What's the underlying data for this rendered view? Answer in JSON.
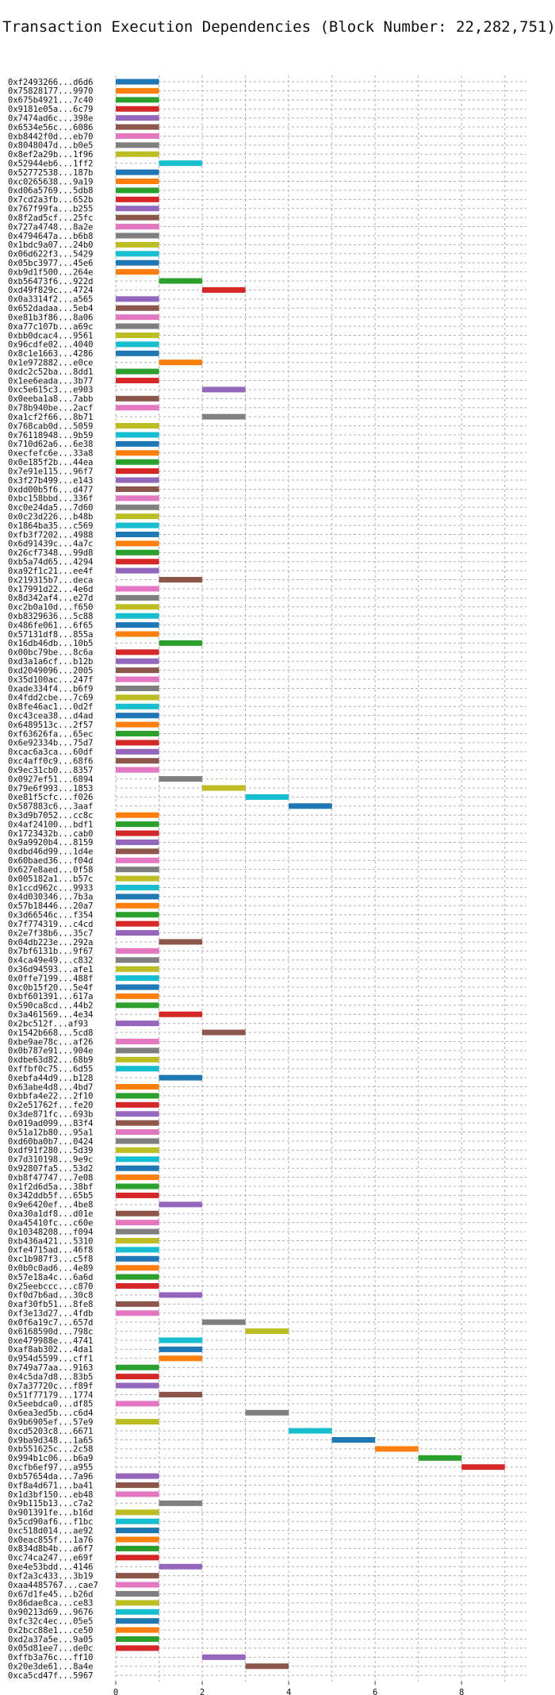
{
  "chart_data": {
    "type": "bar",
    "orientation": "horizontal-gantt",
    "title": "Transaction Execution Dependencies (Block Number: 22,282,751)",
    "xlabel": "",
    "ylabel": "",
    "xlim": [
      0,
      9.5
    ],
    "xticks": [
      0,
      2,
      4,
      6,
      8
    ],
    "grid": true,
    "palette": [
      "#1f77b4",
      "#ff7f0e",
      "#2ca02c",
      "#d62728",
      "#9467bd",
      "#8c564b",
      "#e377c2",
      "#7f7f7f",
      "#bcbd22",
      "#17becf"
    ],
    "categories": [
      "0xf2493266...d6d6",
      "0x75828177...9970",
      "0x675b4921...7c40",
      "0x9181e05a...6c79",
      "0x7474ad6c...398e",
      "0x6534e56c...6086",
      "0xb8442f0d...eb70",
      "0x8048047d...b0e5",
      "0x8ef2a29b...1f96",
      "0x52944eb6...1ff2",
      "0x52772538...187b",
      "0xc0265638...9a19",
      "0xd06a5769...5db8",
      "0x7cd2a3fb...652b",
      "0x767f99fa...b255",
      "0x8f2ad5cf...25fc",
      "0x727a4748...8a2e",
      "0x4794647a...b6b8",
      "0x1bdc9a07...24b0",
      "0x06d622f3...5429",
      "0x05bc3977...45e6",
      "0xb9d1f500...264e",
      "0xb56473f6...922d",
      "0xd49f829c...4724",
      "0x0a3314f2...a565",
      "0x652dadaa...5eb4",
      "0xe81b3f86...8a06",
      "0xa77c107b...a69c",
      "0xbb0dcac4...9561",
      "0x96cdfe02...4040",
      "0x8c1e1663...4286",
      "0x1e972882...e0ce",
      "0xdc2c52ba...8dd1",
      "0x1ee6eada...3b77",
      "0xc5e615c3...e903",
      "0x0eeba1a8...7abb",
      "0x78b940be...2acf",
      "0xa1cf2f66...8b71",
      "0x768cab0d...5059",
      "0x76118948...9b59",
      "0x710d62a6...6e38",
      "0xecfefc6e...33a8",
      "0x0e185f2b...44ea",
      "0x7e91e115...96f7",
      "0x3f27b499...e143",
      "0xdd00b5f6...d477",
      "0xbc158bbd...336f",
      "0xc0e24da5...7d60",
      "0x0c23d226...b48b",
      "0x1864ba35...c569",
      "0xfb3f7202...4988",
      "0x6d91439c...4a7c",
      "0x26cf7348...99d8",
      "0xb5a74d65...4294",
      "0xa92f1c21...ee4f",
      "0x219315b7...deca",
      "0x17991d22...4e6d",
      "0x8d342af4...e27d",
      "0xc2b0a10d...f650",
      "0xb8329636...5c88",
      "0x486fe061...6f65",
      "0x57131df8...855a",
      "0x16db46db...10b5",
      "0x00bc79be...8c6a",
      "0xd3a1a6cf...b12b",
      "0xd2049096...2005",
      "0x35d100ac...247f",
      "0xade334f4...b6f9",
      "0x4fdd2cbe...7c69",
      "0x8fe46ac1...0d2f",
      "0xc43cea38...d4ad",
      "0x6489513c...2f57",
      "0xf63626fa...65ec",
      "0x6e92334b...75d7",
      "0xcac6a3ca...60df",
      "0xc4aff0c9...68f6",
      "0x9ec31cb0...8357",
      "0x0927ef51...6894",
      "0x79e6f993...1853",
      "0xe81f5cfc...f026",
      "0x587883c6...3aaf",
      "0x3d9b7052...cc8c",
      "0x4af24100...bdf1",
      "0x1723432b...cab0",
      "0x9a9920b4...8159",
      "0xdbd46d99...1d4e",
      "0x60baed36...f04d",
      "0x627e8aed...0f58",
      "0x005182a1...b57c",
      "0x1ccd962c...9933",
      "0x4d030346...7b3a",
      "0x57b18446...20a7",
      "0x3d66546c...f354",
      "0x7f774319...c4cd",
      "0x2e7f38b6...35c7",
      "0x04db223e...292a",
      "0x7bf6131b...9f67",
      "0x4ca49e49...c832",
      "0x36d94593...afe1",
      "0x0ffe7199...488f",
      "0xc0b15f20...5e4f",
      "0xbf601391...617a",
      "0x590ca8cd...44b2",
      "0x3a461569...4e34",
      "0x2bc512f...af93",
      "0x1542b668...5cd8",
      "0xbe9ae78c...af26",
      "0x0b787e91...904e",
      "0xdbe63d82...68b9",
      "0xffbf0c75...6d55",
      "0xebfa44d9...b128",
      "0x63abe4d8...4bd7",
      "0xbbfa4e22...2f10",
      "0x2e51762f...fe20",
      "0x3de871fc...693b",
      "0x019ad099...83f4",
      "0x51a12b80...95a1",
      "0xd60ba0b7...0424",
      "0xdf91f280...5d39",
      "0x7d310198...9e9c",
      "0x92807fa5...53d2",
      "0xb8f47747...7e08",
      "0x1f2d6d5a...38bf",
      "0x342ddb5f...65b5",
      "0x9e6420ef...4be8",
      "0xa30a1df8...d01e",
      "0xa45410fc...c60e",
      "0x10348208...f094",
      "0xb436a421...5310",
      "0xfe4715ad...46f8",
      "0xc1b987f3...c5f8",
      "0x0b0c0ad6...4e89",
      "0x57e18a4c...6a6d",
      "0x25eebccc...c870",
      "0xf0d7b6ad...30c8",
      "0xaf30fb51...8fe8",
      "0xf3e13d27...4fdb",
      "0x0f6a19c7...657d",
      "0x6168590d...798c",
      "0xe479988e...4741",
      "0xaf8ab302...4da1",
      "0x954d5599...cff1",
      "0x749a77aa...9163",
      "0x4c5da7d8...83b5",
      "0x7a37720c...f89f",
      "0x51f77179...1774",
      "0x5eebdca0...df85",
      "0x6ea3ed5b...c6d4",
      "0x9b6905ef...57e9",
      "0xcd5203c8...6671",
      "0x9ba9d348...1a65",
      "0xb551625c...2c58",
      "0x994b1c06...b6a9",
      "0xcfb6ef97...a955",
      "0xb57654da...7a96",
      "0xf8a4d671...ba41",
      "0x1d3bf150...eb48",
      "0x9b115b13...c7a2",
      "0x901391fe...b16d",
      "0x5cd90af6...f1bc",
      "0xc518d014...ae92",
      "0x0eac855f...1a76",
      "0x834d8b4b...a6f7",
      "0xc74ca247...e69f",
      "0xe4e53bdd...4146",
      "0xf2a3c433...3b19",
      "0xaa4485767...cae7",
      "0x67d1fe45...b26d",
      "0x86dae8ca...ce83",
      "0x90213d69...9676",
      "0xfc32c4ec...05e5",
      "0x2bcc88e1...ce50",
      "0xd2a37a5e...9a05",
      "0x05d81ee7...de0c",
      "0xffb3a76c...ff10",
      "0x20e3de61...8a4e",
      "0xca5cd47f...5967"
    ],
    "start": [
      0,
      0,
      0,
      0,
      0,
      0,
      0,
      0,
      0,
      1,
      0,
      0,
      0,
      0,
      0,
      0,
      0,
      0,
      0,
      0,
      0,
      0,
      1,
      2,
      0,
      0,
      0,
      0,
      0,
      0,
      0,
      1,
      0,
      0,
      2,
      0,
      0,
      2,
      0,
      0,
      0,
      0,
      0,
      0,
      0,
      0,
      0,
      0,
      0,
      0,
      0,
      0,
      0,
      0,
      0,
      1,
      0,
      0,
      0,
      0,
      0,
      0,
      1,
      0,
      0,
      0,
      0,
      0,
      0,
      0,
      0,
      0,
      0,
      0,
      0,
      0,
      0,
      1,
      2,
      3,
      4,
      0,
      0,
      0,
      0,
      0,
      0,
      0,
      0,
      0,
      0,
      0,
      0,
      0,
      0,
      1,
      0,
      0,
      0,
      0,
      0,
      0,
      0,
      1,
      0,
      2,
      0,
      0,
      0,
      0,
      1,
      0,
      0,
      0,
      0,
      0,
      0,
      0,
      0,
      0,
      0,
      0,
      0,
      0,
      1,
      0,
      0,
      0,
      0,
      0,
      0,
      0,
      0,
      0,
      1,
      0,
      0,
      2,
      3,
      1,
      1,
      1,
      0,
      0,
      0,
      1,
      0,
      3,
      0,
      4,
      5,
      6,
      7,
      8,
      0,
      0,
      0,
      1,
      0,
      0,
      0,
      0,
      0,
      0,
      1,
      0,
      0,
      0,
      0,
      0,
      0,
      0,
      0,
      0,
      2,
      3
    ],
    "duration": 1,
    "colors": [
      0,
      1,
      2,
      3,
      4,
      5,
      6,
      7,
      8,
      9,
      0,
      1,
      2,
      3,
      4,
      5,
      6,
      7,
      8,
      9,
      0,
      1,
      2,
      3,
      4,
      5,
      6,
      7,
      8,
      9,
      0,
      1,
      2,
      3,
      4,
      5,
      6,
      7,
      8,
      9,
      0,
      1,
      2,
      3,
      4,
      5,
      6,
      7,
      8,
      9,
      0,
      1,
      2,
      3,
      4,
      5,
      6,
      7,
      8,
      9,
      0,
      1,
      2,
      3,
      4,
      5,
      6,
      7,
      8,
      9,
      0,
      1,
      2,
      3,
      4,
      5,
      6,
      7,
      8,
      9,
      0,
      1,
      2,
      3,
      4,
      5,
      6,
      7,
      8,
      9,
      0,
      1,
      2,
      3,
      4,
      5,
      6,
      7,
      8,
      9,
      0,
      1,
      2,
      3,
      4,
      5,
      6,
      7,
      8,
      9,
      0,
      1,
      2,
      3,
      4,
      5,
      6,
      7,
      8,
      9,
      0,
      1,
      2,
      3,
      4,
      5,
      6,
      7,
      8,
      9,
      0,
      1,
      2,
      3,
      4,
      5,
      6,
      7,
      8,
      9,
      0,
      1,
      2,
      3,
      4,
      5,
      6,
      7,
      8,
      9,
      0,
      1,
      2,
      3,
      4,
      5,
      6,
      7,
      8,
      9,
      0,
      1,
      2,
      3,
      4,
      5,
      6,
      7,
      8,
      9,
      0,
      1,
      2,
      3,
      4,
      5,
      6
    ]
  }
}
